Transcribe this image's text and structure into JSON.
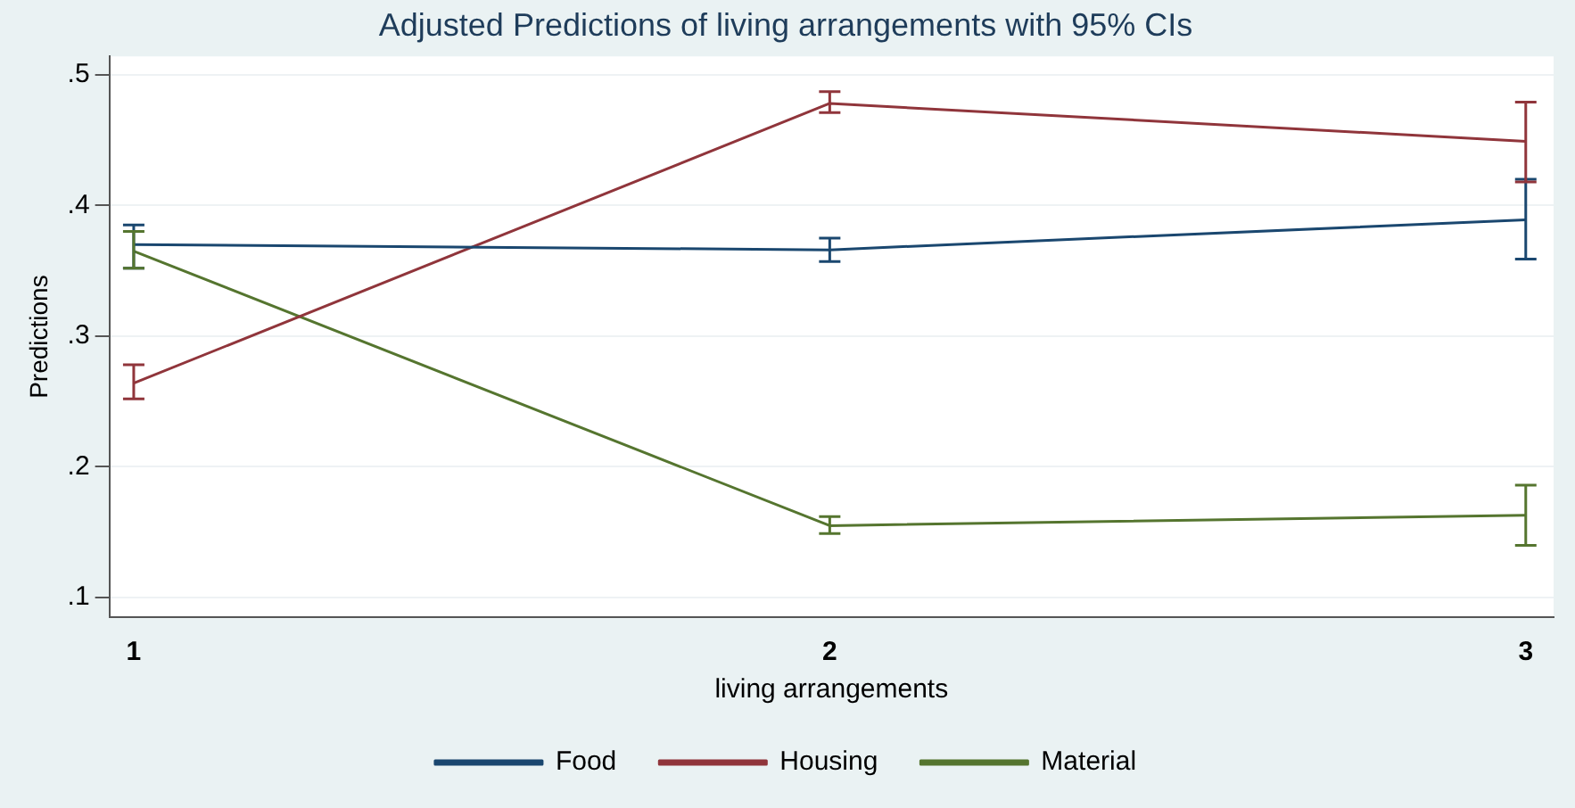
{
  "chart_data": {
    "type": "line",
    "title": "Adjusted Predictions of living arrangements with 95% CIs",
    "xlabel": "living arrangements",
    "ylabel": "Predictions",
    "x": [
      1,
      2,
      3
    ],
    "xlim": [
      0.965,
      3.04
    ],
    "xticks": [
      1,
      2,
      3
    ],
    "ylim": [
      0.085,
      0.514
    ],
    "yticks": [
      {
        "value": 0.1,
        "label": ".1"
      },
      {
        "value": 0.2,
        "label": ".2"
      },
      {
        "value": 0.3,
        "label": ".3"
      },
      {
        "value": 0.4,
        "label": ".4"
      },
      {
        "value": 0.5,
        "label": ".5"
      }
    ],
    "series": [
      {
        "name": "Food",
        "color": "#1a476f",
        "values": [
          0.37,
          0.366,
          0.389
        ],
        "errors": [
          [
            0.352,
            0.385
          ],
          [
            0.357,
            0.375
          ],
          [
            0.359,
            0.42
          ]
        ]
      },
      {
        "name": "Housing",
        "color": "#90353b",
        "values": [
          0.264,
          0.478,
          0.449
        ],
        "errors": [
          [
            0.252,
            0.278
          ],
          [
            0.471,
            0.487
          ],
          [
            0.418,
            0.479
          ]
        ]
      },
      {
        "name": "Material",
        "color": "#55752f",
        "values": [
          0.365,
          0.155,
          0.163
        ],
        "errors": [
          [
            0.352,
            0.38
          ],
          [
            0.149,
            0.162
          ],
          [
            0.14,
            0.186
          ]
        ]
      }
    ],
    "grid": "y",
    "legend": "bottom",
    "line_style": "solid"
  }
}
